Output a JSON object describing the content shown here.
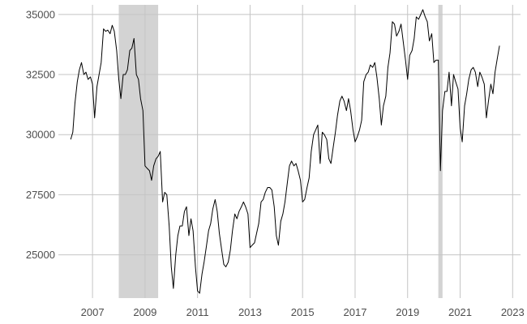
{
  "chart_data": {
    "type": "line",
    "title": "",
    "xlabel": "",
    "ylabel": "",
    "xlim": [
      2005.7,
      2023.3
    ],
    "ylim": [
      23200,
      35400
    ],
    "x_ticks": [
      2007,
      2009,
      2011,
      2013,
      2015,
      2017,
      2019,
      2021,
      2023
    ],
    "x_tick_labels": [
      "2007",
      "2009",
      "2011",
      "2013",
      "2015",
      "2017",
      "2019",
      "2021",
      "2023"
    ],
    "y_ticks": [
      25000,
      27500,
      30000,
      32500,
      35000
    ],
    "y_tick_labels": [
      "25000",
      "27500",
      "30000",
      "32500",
      "35000"
    ],
    "grid": true,
    "shaded_periods": [
      {
        "start": 2008.0,
        "end": 2009.5
      },
      {
        "start": 2020.17,
        "end": 2020.33
      }
    ],
    "colors": {
      "line": "#000000",
      "grid": "#c4c4c4",
      "band": "#d3d3d3",
      "tick_text": "#4d4d4d",
      "background": "#ffffff"
    },
    "series": [
      {
        "values": [
          [
            2006.17,
            29800
          ],
          [
            2006.25,
            30100
          ],
          [
            2006.33,
            31300
          ],
          [
            2006.42,
            32200
          ],
          [
            2006.5,
            32700
          ],
          [
            2006.58,
            33000
          ],
          [
            2006.67,
            32500
          ],
          [
            2006.75,
            32600
          ],
          [
            2006.83,
            32300
          ],
          [
            2006.92,
            32400
          ],
          [
            2007.0,
            32100
          ],
          [
            2007.08,
            30700
          ],
          [
            2007.17,
            32000
          ],
          [
            2007.25,
            32500
          ],
          [
            2007.33,
            33000
          ],
          [
            2007.42,
            34400
          ],
          [
            2007.5,
            34300
          ],
          [
            2007.58,
            34350
          ],
          [
            2007.67,
            34200
          ],
          [
            2007.75,
            34550
          ],
          [
            2007.83,
            34300
          ],
          [
            2007.92,
            33500
          ],
          [
            2008.0,
            32300
          ],
          [
            2008.08,
            31500
          ],
          [
            2008.17,
            32500
          ],
          [
            2008.25,
            32500
          ],
          [
            2008.33,
            32700
          ],
          [
            2008.42,
            33500
          ],
          [
            2008.5,
            33600
          ],
          [
            2008.58,
            34000
          ],
          [
            2008.67,
            32500
          ],
          [
            2008.75,
            32300
          ],
          [
            2008.83,
            31500
          ],
          [
            2008.92,
            31000
          ],
          [
            2009.0,
            28700
          ],
          [
            2009.08,
            28600
          ],
          [
            2009.17,
            28500
          ],
          [
            2009.25,
            28100
          ],
          [
            2009.33,
            28700
          ],
          [
            2009.42,
            29000
          ],
          [
            2009.5,
            29100
          ],
          [
            2009.58,
            29300
          ],
          [
            2009.67,
            27200
          ],
          [
            2009.75,
            27600
          ],
          [
            2009.83,
            27500
          ],
          [
            2009.92,
            26200
          ],
          [
            2010.0,
            24500
          ],
          [
            2010.08,
            23600
          ],
          [
            2010.17,
            25000
          ],
          [
            2010.25,
            25800
          ],
          [
            2010.33,
            26200
          ],
          [
            2010.42,
            26200
          ],
          [
            2010.5,
            26800
          ],
          [
            2010.58,
            27000
          ],
          [
            2010.67,
            25800
          ],
          [
            2010.75,
            26500
          ],
          [
            2010.83,
            26000
          ],
          [
            2010.92,
            24500
          ],
          [
            2011.0,
            23500
          ],
          [
            2011.08,
            23400
          ],
          [
            2011.17,
            24200
          ],
          [
            2011.25,
            24700
          ],
          [
            2011.33,
            25300
          ],
          [
            2011.42,
            26000
          ],
          [
            2011.5,
            26300
          ],
          [
            2011.58,
            26900
          ],
          [
            2011.67,
            27300
          ],
          [
            2011.75,
            26800
          ],
          [
            2011.83,
            25900
          ],
          [
            2011.92,
            25200
          ],
          [
            2012.0,
            24600
          ],
          [
            2012.08,
            24500
          ],
          [
            2012.17,
            24700
          ],
          [
            2012.25,
            25200
          ],
          [
            2012.33,
            26000
          ],
          [
            2012.42,
            26700
          ],
          [
            2012.5,
            26500
          ],
          [
            2012.58,
            26800
          ],
          [
            2012.67,
            27000
          ],
          [
            2012.75,
            27200
          ],
          [
            2012.83,
            27000
          ],
          [
            2012.92,
            26700
          ],
          [
            2013.0,
            25300
          ],
          [
            2013.08,
            25400
          ],
          [
            2013.17,
            25500
          ],
          [
            2013.25,
            25900
          ],
          [
            2013.33,
            26300
          ],
          [
            2013.42,
            27200
          ],
          [
            2013.5,
            27300
          ],
          [
            2013.58,
            27600
          ],
          [
            2013.67,
            27800
          ],
          [
            2013.75,
            27800
          ],
          [
            2013.83,
            27700
          ],
          [
            2013.92,
            27000
          ],
          [
            2014.0,
            25800
          ],
          [
            2014.08,
            25400
          ],
          [
            2014.17,
            26400
          ],
          [
            2014.25,
            26700
          ],
          [
            2014.33,
            27200
          ],
          [
            2014.42,
            28000
          ],
          [
            2014.5,
            28700
          ],
          [
            2014.58,
            28900
          ],
          [
            2014.67,
            28700
          ],
          [
            2014.75,
            28800
          ],
          [
            2014.83,
            28500
          ],
          [
            2014.92,
            28100
          ],
          [
            2015.0,
            27200
          ],
          [
            2015.08,
            27300
          ],
          [
            2015.17,
            27800
          ],
          [
            2015.25,
            28200
          ],
          [
            2015.33,
            29300
          ],
          [
            2015.42,
            30000
          ],
          [
            2015.5,
            30200
          ],
          [
            2015.58,
            30400
          ],
          [
            2015.67,
            28800
          ],
          [
            2015.75,
            30100
          ],
          [
            2015.83,
            30000
          ],
          [
            2015.92,
            29800
          ],
          [
            2016.0,
            29000
          ],
          [
            2016.08,
            28800
          ],
          [
            2016.17,
            29500
          ],
          [
            2016.25,
            30100
          ],
          [
            2016.33,
            30800
          ],
          [
            2016.42,
            31400
          ],
          [
            2016.5,
            31600
          ],
          [
            2016.58,
            31400
          ],
          [
            2016.67,
            31000
          ],
          [
            2016.75,
            31500
          ],
          [
            2016.83,
            31000
          ],
          [
            2016.92,
            30200
          ],
          [
            2017.0,
            29700
          ],
          [
            2017.08,
            29900
          ],
          [
            2017.17,
            30200
          ],
          [
            2017.25,
            30600
          ],
          [
            2017.33,
            32200
          ],
          [
            2017.42,
            32500
          ],
          [
            2017.5,
            32600
          ],
          [
            2017.58,
            32900
          ],
          [
            2017.67,
            32800
          ],
          [
            2017.75,
            33000
          ],
          [
            2017.83,
            32400
          ],
          [
            2017.92,
            31500
          ],
          [
            2018.0,
            30400
          ],
          [
            2018.08,
            31200
          ],
          [
            2018.17,
            31600
          ],
          [
            2018.25,
            32800
          ],
          [
            2018.33,
            33400
          ],
          [
            2018.42,
            34700
          ],
          [
            2018.5,
            34600
          ],
          [
            2018.58,
            34100
          ],
          [
            2018.67,
            34300
          ],
          [
            2018.75,
            34600
          ],
          [
            2018.83,
            33900
          ],
          [
            2018.92,
            33100
          ],
          [
            2019.0,
            32300
          ],
          [
            2019.08,
            33300
          ],
          [
            2019.17,
            33500
          ],
          [
            2019.25,
            34000
          ],
          [
            2019.33,
            34900
          ],
          [
            2019.42,
            34800
          ],
          [
            2019.5,
            35000
          ],
          [
            2019.58,
            35200
          ],
          [
            2019.67,
            34900
          ],
          [
            2019.75,
            34700
          ],
          [
            2019.83,
            33900
          ],
          [
            2019.92,
            34200
          ],
          [
            2020.0,
            33000
          ],
          [
            2020.08,
            33100
          ],
          [
            2020.17,
            33100
          ],
          [
            2020.25,
            28500
          ],
          [
            2020.33,
            31000
          ],
          [
            2020.42,
            31800
          ],
          [
            2020.5,
            31800
          ],
          [
            2020.58,
            32600
          ],
          [
            2020.67,
            31200
          ],
          [
            2020.75,
            32500
          ],
          [
            2020.83,
            32200
          ],
          [
            2020.92,
            31900
          ],
          [
            2021.0,
            30300
          ],
          [
            2021.08,
            29700
          ],
          [
            2021.17,
            31200
          ],
          [
            2021.25,
            31700
          ],
          [
            2021.33,
            32300
          ],
          [
            2021.42,
            32700
          ],
          [
            2021.5,
            32800
          ],
          [
            2021.58,
            32600
          ],
          [
            2021.67,
            32000
          ],
          [
            2021.75,
            32600
          ],
          [
            2021.83,
            32400
          ],
          [
            2021.92,
            32100
          ],
          [
            2022.0,
            30700
          ],
          [
            2022.08,
            31400
          ],
          [
            2022.17,
            32100
          ],
          [
            2022.25,
            31700
          ],
          [
            2022.33,
            32600
          ],
          [
            2022.42,
            33200
          ],
          [
            2022.5,
            33700
          ]
        ]
      }
    ]
  }
}
